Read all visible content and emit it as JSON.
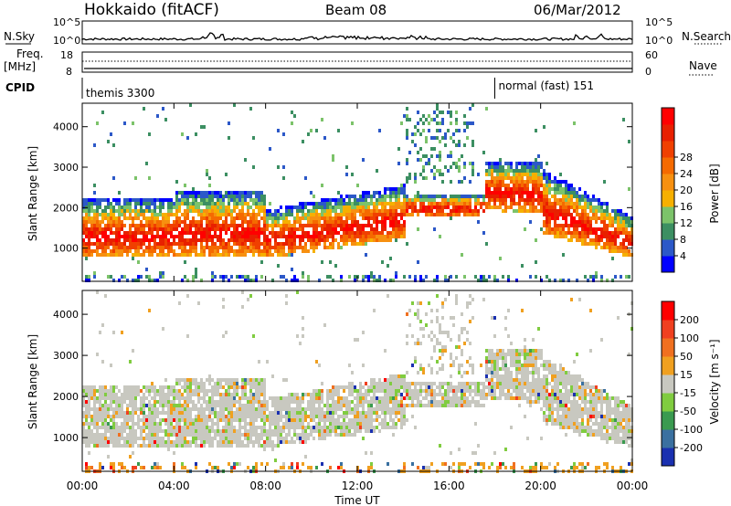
{
  "header": {
    "station": "Hokkaido (fitACF)",
    "beam": "Beam 08",
    "date": "06/Mar/2012"
  },
  "top_panels": {
    "nsky_label": "N.Sky",
    "nsearch_label": "N.Search",
    "noise_ticks": [
      "10^5",
      "10^0"
    ],
    "freq_label_1": "Freq.",
    "freq_label_2": "[MHz]",
    "freq_ticks": [
      "18",
      "8"
    ],
    "nave_label": "Nave",
    "nave_ticks": [
      "60",
      "0"
    ],
    "cpid_label": "CPID",
    "cpid_1": "themis 3300",
    "cpid_2": "normal (fast) 151",
    "cpid_change_hour": 18.0
  },
  "chart_data": [
    {
      "type": "heatmap",
      "name": "power",
      "ylabel": "Slant Range [km]",
      "yticks": [
        1000,
        2000,
        3000,
        4000
      ],
      "ylim": [
        180,
        4580
      ],
      "xlim": [
        0,
        24
      ],
      "colorbar": {
        "label": "Power [dB]",
        "ticks": [
          "4",
          "8",
          "12",
          "16",
          "20",
          "24",
          "28"
        ],
        "colors": [
          "#0000ff",
          "#2c58c8",
          "#3c8f62",
          "#7cc36a",
          "#f6b000",
          "#f79010",
          "#f56a00",
          "#f04000",
          "#e82000",
          "#ff0000"
        ]
      }
    },
    {
      "type": "heatmap",
      "name": "velocity",
      "ylabel": "Slant Range [km]",
      "yticks": [
        1000,
        2000,
        3000,
        4000
      ],
      "ylim": [
        180,
        4580
      ],
      "xlim": [
        0,
        24
      ],
      "xticks": [
        "00:00",
        "04:00",
        "08:00",
        "12:00",
        "16:00",
        "20:00",
        "00:00"
      ],
      "xlabel": "Time UT",
      "colorbar": {
        "label": "Velocity [m s⁻¹]",
        "ticks": [
          "200",
          "100",
          "50",
          "15",
          "-15",
          "-50",
          "-100",
          "-200"
        ],
        "colors": [
          "#1a30b0",
          "#3a70a0",
          "#3a9a50",
          "#80cc40",
          "#c8c8c0",
          "#f0a020",
          "#f07020",
          "#f04020",
          "#ff0000"
        ]
      }
    }
  ]
}
